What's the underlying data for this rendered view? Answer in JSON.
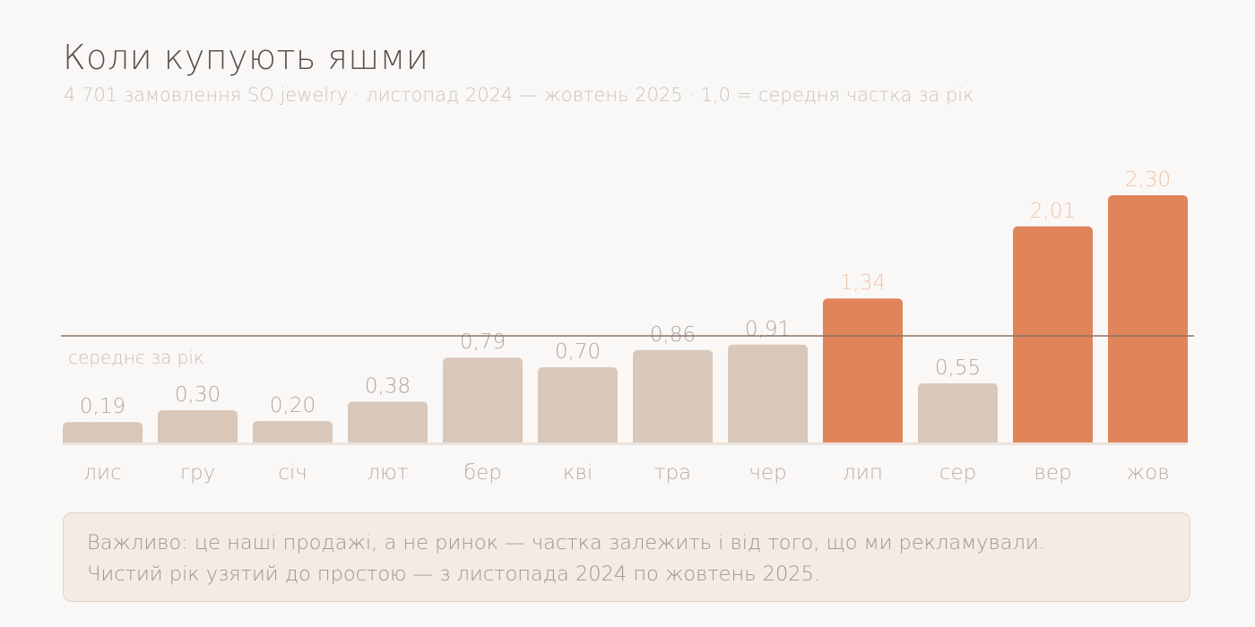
{
  "title": "Коли купують яшми",
  "subtitle": "4 701 замовлення SO jewelry · листопад 2024 — жовтень 2025 · 1,0 = середня частка за рік",
  "chart_data": {
    "type": "bar",
    "categories": [
      "лис",
      "гру",
      "січ",
      "лют",
      "бер",
      "кві",
      "тра",
      "чер",
      "лип",
      "сер",
      "вер",
      "жов"
    ],
    "values": [
      0.19,
      0.3,
      0.2,
      0.38,
      0.79,
      0.7,
      0.86,
      0.91,
      1.34,
      0.55,
      2.01,
      2.3
    ],
    "value_labels": [
      "0,19",
      "0,30",
      "0,20",
      "0,38",
      "0,79",
      "0,70",
      "0,86",
      "0,91",
      "1,34",
      "0,55",
      "2,01",
      "2,30"
    ],
    "highlighted": [
      false,
      false,
      false,
      false,
      false,
      false,
      false,
      false,
      true,
      false,
      true,
      true
    ],
    "reference_line": {
      "value": 1.0,
      "label": "середнє за рік"
    },
    "ylim": [
      0,
      2.3
    ],
    "grid": false,
    "legend": "none",
    "colors": {
      "bar": "#d9c8ba",
      "bar_highlight": "#e0845a",
      "label": "#b0a6a0",
      "label_highlight": "#f0c3a9",
      "category": "#b8aea8",
      "reference_line": "#8a7466",
      "reference_label": "#c7beb8",
      "baseline": "#ebe3dc"
    }
  },
  "note": {
    "line1": "Важливо: це наші продажі, а не ринок — частка залежить і від того, що ми рекламували.",
    "line2": "Чистий рік узятий до простою — з листопада 2024 по жовтень 2025."
  }
}
